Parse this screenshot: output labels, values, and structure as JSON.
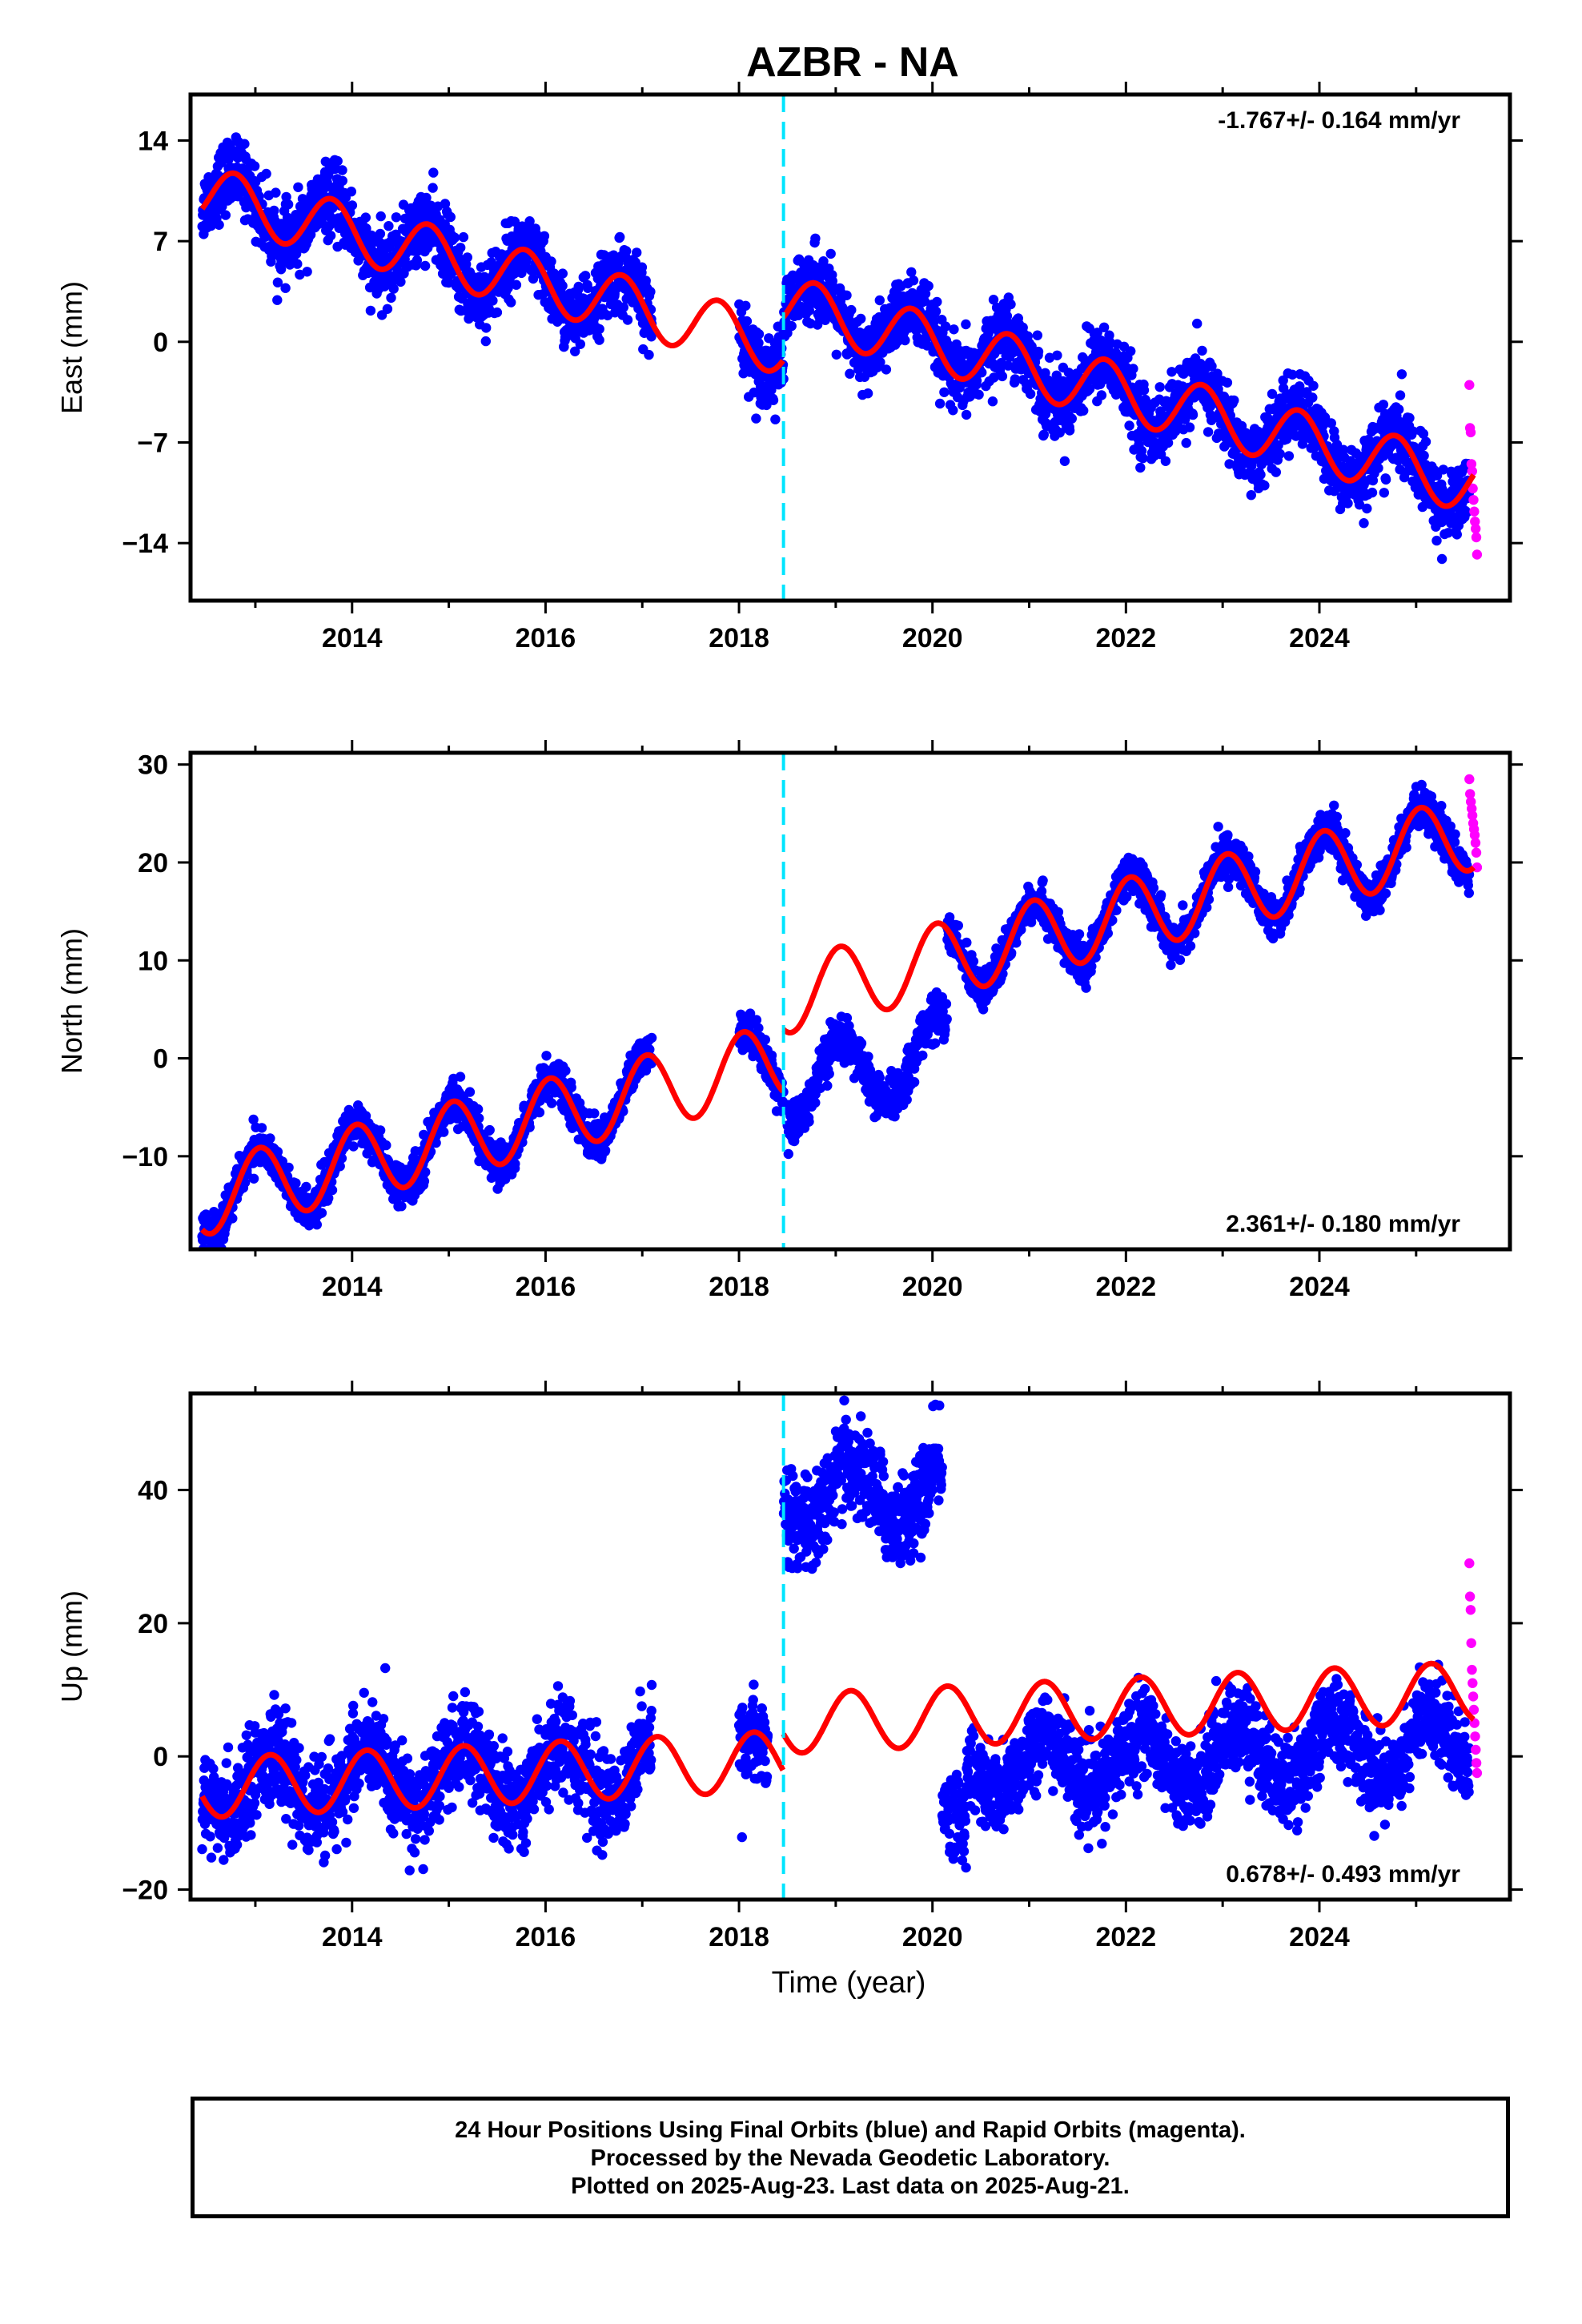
{
  "title": "AZBR - NA",
  "xlabel": "Time (year)",
  "footer": {
    "line1": "24 Hour Positions Using Final Orbits (blue) and Rapid Orbits (magenta).",
    "line2": "Processed by the Nevada Geodetic Laboratory.",
    "line3": "Plotted on 2025-Aug-23. Last data on 2025-Aug-21."
  },
  "colors": {
    "final": "#0000ff",
    "rapid": "#ff00ff",
    "model": "#ff0000",
    "step": "#00e5ff"
  },
  "chart_data": [
    {
      "type": "scatter",
      "ylabel": "East (mm)",
      "xlim": [
        2012.33,
        2025.97
      ],
      "ylim": [
        -18,
        17.2
      ],
      "xticks": [
        2014,
        2016,
        2018,
        2020,
        2022,
        2024
      ],
      "xtick_labels": [
        "2014",
        "2016",
        "2018",
        "2020",
        "2022",
        "2024"
      ],
      "yticks": [
        -14,
        -7,
        0,
        7,
        14
      ],
      "ytick_labels": [
        "−14",
        "−7",
        "0",
        "7",
        "14"
      ],
      "rate_label": "-1.767+/- 0.164 mm/yr",
      "rate_position": "top-right",
      "step_epoch": 2018.46,
      "model": {
        "pre": {
          "t0": 2015.0,
          "offset": 5.8,
          "slope": -1.767,
          "annual_amp": 2.0,
          "annual_phase": 2.9
        },
        "post": {
          "t0": 2022.0,
          "offset": -3.6,
          "slope": -1.767,
          "annual_amp": 2.0,
          "annual_phase": 2.9
        }
      },
      "final_segments": [
        {
          "start": 2012.45,
          "end": 2017.1,
          "noise": 1.2,
          "model": "pre"
        },
        {
          "start": 2018.0,
          "end": 2018.46,
          "noise": 1.2,
          "model": "pre"
        },
        {
          "start": 2018.46,
          "end": 2025.55,
          "noise": 1.2,
          "model": "post"
        }
      ],
      "rapid_segment": {
        "start": 2025.55,
        "end": 2025.63,
        "values": [
          -3.0,
          -6.0,
          -6.3,
          -8.5,
          -9.0,
          -10.2,
          -11.0,
          -11.8,
          -12.5,
          -13.0,
          -13.6,
          -14.8
        ]
      }
    },
    {
      "type": "scatter",
      "ylabel": "North (mm)",
      "xlim": [
        2012.33,
        2025.97
      ],
      "ylim": [
        -19.5,
        31.2
      ],
      "xticks": [
        2014,
        2016,
        2018,
        2020,
        2022,
        2024
      ],
      "xtick_labels": [
        "2014",
        "2016",
        "2018",
        "2020",
        "2022",
        "2024"
      ],
      "yticks": [
        -10,
        0,
        10,
        20,
        30
      ],
      "ytick_labels": [
        "−10",
        "0",
        "10",
        "20",
        "30"
      ],
      "rate_label": "2.361+/- 0.180 mm/yr",
      "rate_position": "bottom-right",
      "step_epoch": 2018.46,
      "model": {
        "pre": {
          "t0": 2015.0,
          "offset": -8.3,
          "slope": 2.361,
          "annual_amp": 3.8,
          "annual_phase": 1.3
        },
        "post": {
          "t0": 2022.0,
          "offset": 14.6,
          "slope": 2.361,
          "annual_amp": 3.8,
          "annual_phase": 1.3
        }
      },
      "final_segments": [
        {
          "start": 2012.45,
          "end": 2017.1,
          "noise": 1.0,
          "model": "pre"
        },
        {
          "start": 2018.0,
          "end": 2018.46,
          "noise": 1.0,
          "model": "pre"
        },
        {
          "start": 2018.5,
          "end": 2020.15,
          "noise": 1.1,
          "model": "post",
          "shift": -9.5
        },
        {
          "start": 2020.15,
          "end": 2025.55,
          "noise": 1.0,
          "model": "post"
        }
      ],
      "rapid_segment": {
        "start": 2025.55,
        "end": 2025.63,
        "values": [
          28.5,
          27.0,
          26.2,
          25.5,
          24.8,
          24.0,
          23.4,
          22.8,
          22.0,
          21.0,
          19.5
        ]
      }
    },
    {
      "type": "scatter",
      "ylabel": "Up (mm)",
      "xlim": [
        2012.33,
        2025.97
      ],
      "ylim": [
        -21.5,
        54.5
      ],
      "xticks": [
        2014,
        2016,
        2018,
        2020,
        2022,
        2024
      ],
      "xtick_labels": [
        "2014",
        "2016",
        "2018",
        "2020",
        "2022",
        "2024"
      ],
      "yticks": [
        -20,
        0,
        20,
        40
      ],
      "ytick_labels": [
        "−20",
        "0",
        "20",
        "40"
      ],
      "rate_label": "0.678+/- 0.493 mm/yr",
      "rate_position": "bottom-right",
      "step_epoch": 2018.46,
      "model": {
        "pre": {
          "t0": 2015.0,
          "offset": -3.0,
          "slope": 0.678,
          "annual_amp": 4.5,
          "annual_phase": 0.6
        },
        "post": {
          "t0": 2022.0,
          "offset": 7.3,
          "slope": 0.678,
          "annual_amp": 4.5,
          "annual_phase": 0.6
        }
      },
      "final_segments": [
        {
          "start": 2012.45,
          "end": 2017.1,
          "noise": 3.5,
          "model": "pre"
        },
        {
          "start": 2018.0,
          "end": 2018.3,
          "noise": 3.0,
          "model": "pre"
        },
        {
          "start": 2018.46,
          "end": 2020.1,
          "noise": 3.5,
          "model": "post",
          "shift": 34.0
        },
        {
          "start": 2020.1,
          "end": 2020.35,
          "noise": 3.0,
          "model": "post",
          "shift": -18.0
        },
        {
          "start": 2020.35,
          "end": 2025.55,
          "noise": 3.2,
          "model": "post",
          "shift": -8.0
        }
      ],
      "rapid_segment": {
        "start": 2025.55,
        "end": 2025.63,
        "values": [
          29.0,
          24.0,
          22.0,
          17.0,
          13.0,
          11.0,
          9.0,
          7.0,
          5.0,
          3.0,
          1.0,
          -1.0,
          -2.5
        ]
      }
    }
  ]
}
